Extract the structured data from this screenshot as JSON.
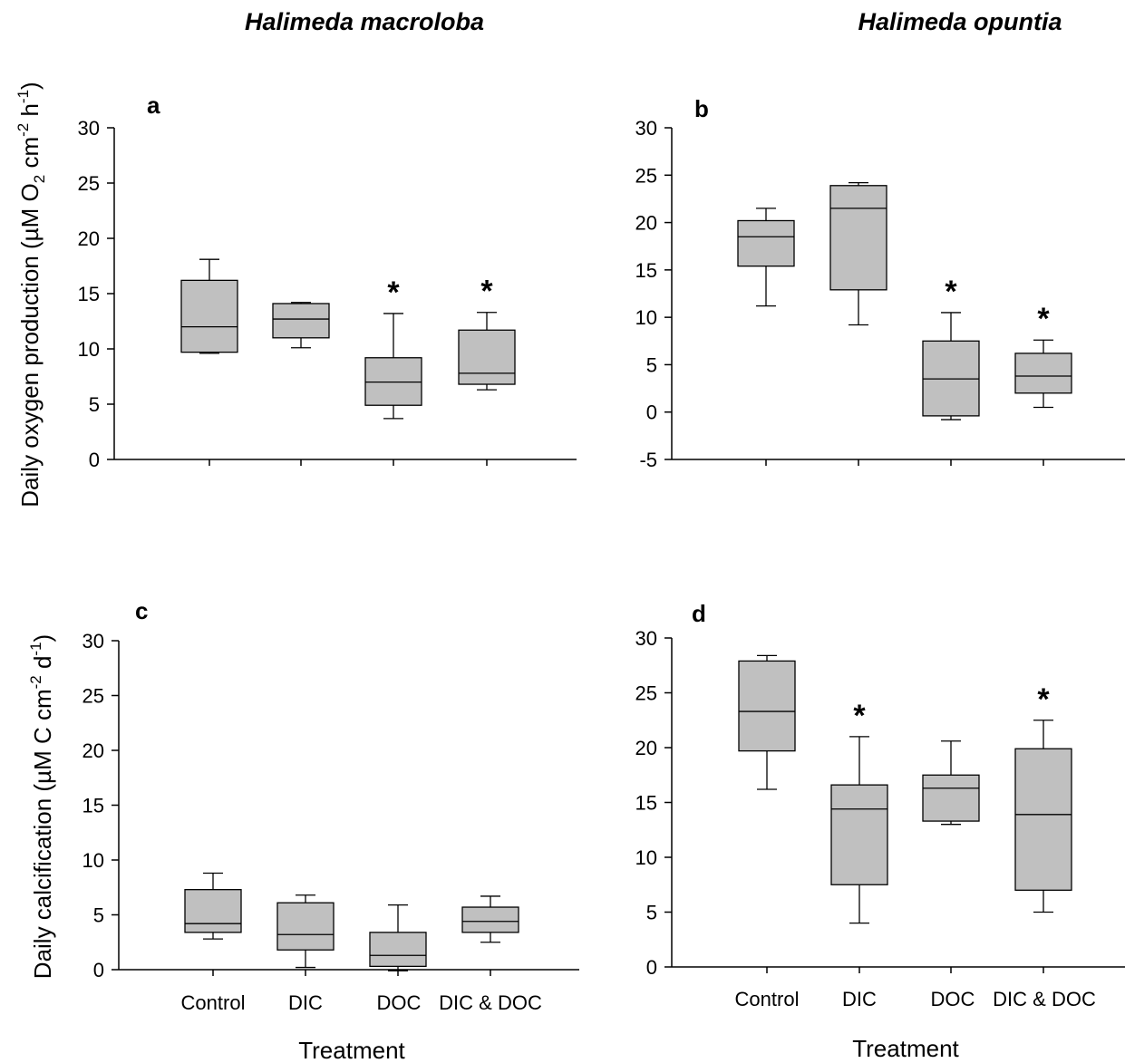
{
  "column_titles": [
    "Halimeda macroloba",
    "Halimeda opuntia"
  ],
  "y_titles": {
    "oxygen": {
      "main": "Daily oxygen production (µM O",
      "sub": "2",
      "mid": " cm",
      "sup1": "-2",
      "mid2": " h",
      "sup2": "-1",
      "end": ")"
    },
    "calc": {
      "main": "Daily calcification (µM C cm",
      "sup1": "-2",
      "mid": " d",
      "sup2": "-1",
      "end": ")"
    }
  },
  "x_title": "Treatment",
  "colors": {
    "box_fill": "#c0c0c0",
    "stroke": "#000000"
  },
  "chart_data": [
    {
      "type": "box",
      "panel": "a",
      "title": "Halimeda macroloba",
      "ylim": [
        0,
        30
      ],
      "yticks": [
        0,
        5,
        10,
        15,
        20,
        25,
        30
      ],
      "categories": [
        "Control",
        "DIC",
        "DOC",
        "DIC & DOC"
      ],
      "show_category_labels": false,
      "boxes": [
        {
          "min": 9.6,
          "q1": 9.7,
          "median": 12.0,
          "q3": 16.2,
          "max": 18.1,
          "significant": false
        },
        {
          "min": 10.1,
          "q1": 11.0,
          "median": 12.7,
          "q3": 14.1,
          "max": 14.2,
          "significant": false
        },
        {
          "min": 3.7,
          "q1": 4.9,
          "median": 7.0,
          "q3": 9.2,
          "max": 13.2,
          "significant": true
        },
        {
          "min": 6.3,
          "q1": 6.8,
          "median": 7.8,
          "q3": 11.7,
          "max": 13.3,
          "significant": true
        }
      ]
    },
    {
      "type": "box",
      "panel": "b",
      "title": "Halimeda opuntia",
      "ylim": [
        -5,
        30
      ],
      "yticks": [
        -5,
        0,
        5,
        10,
        15,
        20,
        25,
        30
      ],
      "categories": [
        "Control",
        "DIC",
        "DOC",
        "DIC & DOC"
      ],
      "show_category_labels": false,
      "boxes": [
        {
          "min": 11.2,
          "q1": 15.4,
          "median": 18.5,
          "q3": 20.2,
          "max": 21.5,
          "significant": false
        },
        {
          "min": 9.2,
          "q1": 12.9,
          "median": 21.5,
          "q3": 23.9,
          "max": 24.2,
          "significant": false
        },
        {
          "min": -0.8,
          "q1": -0.4,
          "median": 3.5,
          "q3": 7.5,
          "max": 10.5,
          "significant": true
        },
        {
          "min": 0.5,
          "q1": 2.0,
          "median": 3.8,
          "q3": 6.2,
          "max": 7.6,
          "significant": true
        }
      ]
    },
    {
      "type": "box",
      "panel": "c",
      "title": "",
      "ylim": [
        0,
        30
      ],
      "yticks": [
        0,
        5,
        10,
        15,
        20,
        25,
        30
      ],
      "categories": [
        "Control",
        "DIC",
        "DOC",
        "DIC & DOC"
      ],
      "show_category_labels": true,
      "boxes": [
        {
          "min": 2.8,
          "q1": 3.4,
          "median": 4.2,
          "q3": 7.3,
          "max": 8.8,
          "significant": false
        },
        {
          "min": 0.2,
          "q1": 1.8,
          "median": 3.2,
          "q3": 6.1,
          "max": 6.8,
          "significant": false
        },
        {
          "min": -0.1,
          "q1": 0.3,
          "median": 1.3,
          "q3": 3.4,
          "max": 5.9,
          "significant": false
        },
        {
          "min": 2.5,
          "q1": 3.4,
          "median": 4.4,
          "q3": 5.7,
          "max": 6.7,
          "significant": false
        }
      ]
    },
    {
      "type": "box",
      "panel": "d",
      "title": "",
      "ylim": [
        0,
        30
      ],
      "yticks": [
        0,
        5,
        10,
        15,
        20,
        25,
        30
      ],
      "categories": [
        "Control",
        "DIC",
        "DOC",
        "DIC & DOC"
      ],
      "show_category_labels": true,
      "boxes": [
        {
          "min": 16.2,
          "q1": 19.7,
          "median": 23.3,
          "q3": 27.9,
          "max": 28.4,
          "significant": false
        },
        {
          "min": 4.0,
          "q1": 7.5,
          "median": 14.4,
          "q3": 16.6,
          "max": 21.0,
          "significant": true
        },
        {
          "min": 13.0,
          "q1": 13.3,
          "median": 16.3,
          "q3": 17.5,
          "max": 20.6,
          "significant": false
        },
        {
          "min": 5.0,
          "q1": 7.0,
          "median": 13.9,
          "q3": 19.9,
          "max": 22.5,
          "significant": true
        }
      ]
    }
  ]
}
